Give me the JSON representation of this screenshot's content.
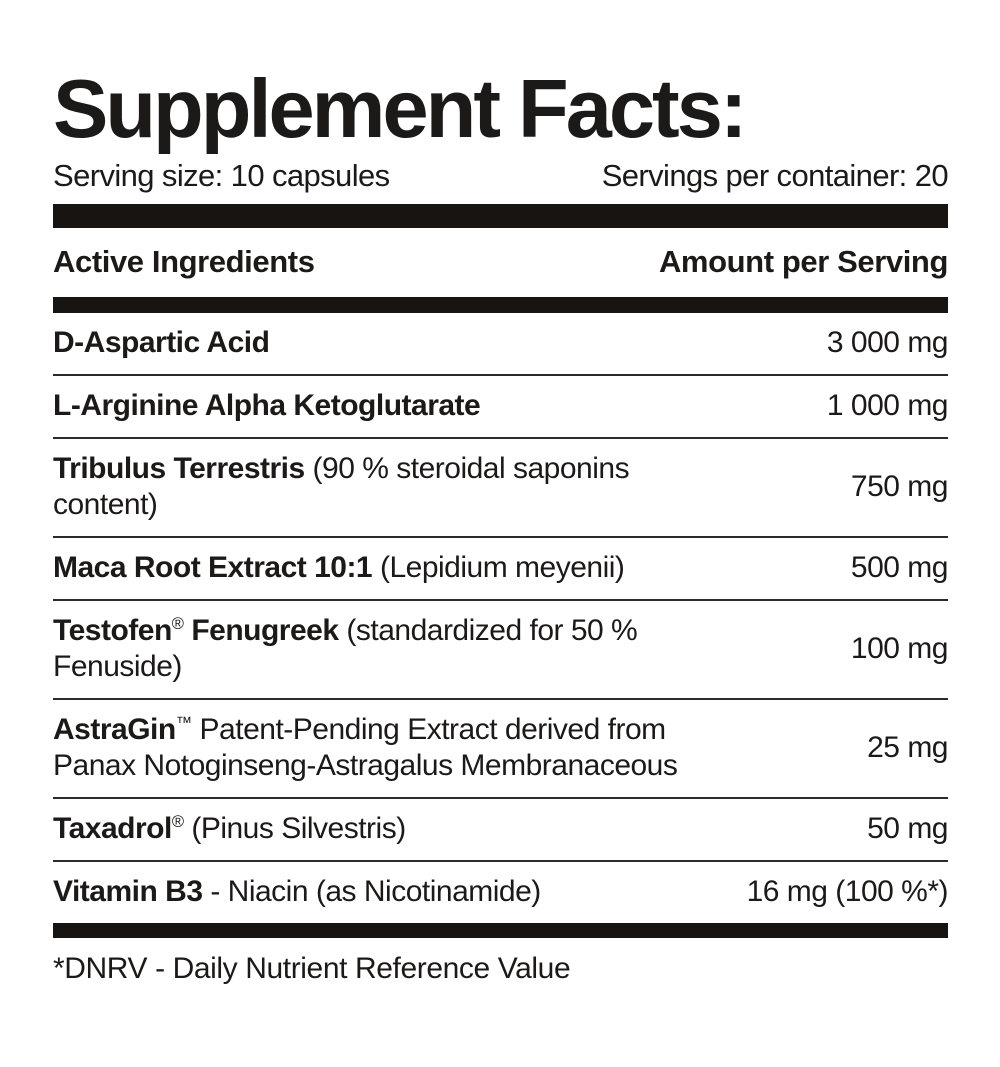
{
  "title": "Supplement Facts:",
  "serving": {
    "size": "Serving size: 10 capsules",
    "per_container": "Servings per container: 20"
  },
  "table": {
    "col_ingredient": "Active Ingredients",
    "col_amount": "Amount per Serving",
    "rows": [
      {
        "bold": "D-Aspartic Acid",
        "amount": "3 000 mg"
      },
      {
        "bold": "L-Arginine Alpha Ketoglutarate",
        "amount": "1 000 mg"
      },
      {
        "bold": "Tribulus Terrestris",
        "regular": "(90 % steroidal saponins content)",
        "amount": "750 mg"
      },
      {
        "bold": "Maca Root Extract 10:1",
        "regular": "(Lepidium meyenii)",
        "amount": "500 mg"
      },
      {
        "bold": "Testofen",
        "sup": "®",
        "bold2": "Fenugreek",
        "regular": "(standardized for 50 % Fenuside)",
        "amount": "100 mg"
      },
      {
        "bold": "AstraGin",
        "sup": "™",
        "regular": "Patent-Pending Extract derived from",
        "line2": "Panax Notoginseng-Astragalus Membranaceous",
        "amount": "25 mg"
      },
      {
        "bold": "Taxadrol",
        "sup": "®",
        "regular": "(Pinus Silvestris)",
        "amount": "50 mg"
      },
      {
        "bold": "Vitamin B3",
        "regular": "- Niacin (as Nicotinamide)",
        "amount": "16 mg (100 %*)"
      }
    ]
  },
  "footnote": "*DNRV - Daily Nutrient Reference Value",
  "colors": {
    "background": "#ffffff",
    "text": "#1c1a19",
    "bar": "#171412",
    "rule": "#2d2a28"
  }
}
